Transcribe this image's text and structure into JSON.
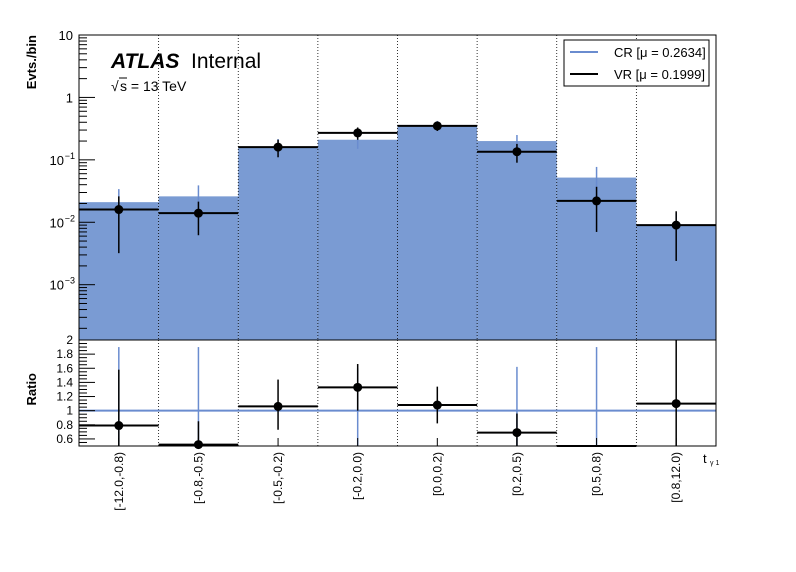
{
  "chart_data": {
    "type": "histogram",
    "categories": [
      "[-12.0,-0.8)",
      "[-0.8,-0.5)",
      "[-0.5,-0.2)",
      "[-0.2,0.0)",
      "[0.0,0.2)",
      "[0.2,0.5)",
      "[0.5,0.8)",
      "[0.8,12.0)"
    ],
    "xlabel": "t",
    "xlabel_sub": "γ 1",
    "main": {
      "ylabel": "Evts./bin",
      "yscale": "log",
      "ylim": [
        0.00013,
        10
      ],
      "yticks": [
        {
          "value": 10,
          "label": "10"
        },
        {
          "value": 1,
          "label": "1"
        },
        {
          "value": 0.1,
          "label": "10",
          "exp": "−1"
        },
        {
          "value": 0.01,
          "label": "10",
          "exp": "−2"
        },
        {
          "value": 0.001,
          "label": "10",
          "exp": "−3"
        }
      ],
      "series": [
        {
          "name": "CR [μ = 0.2634]",
          "style": "filled-histogram",
          "color": "#7a9bd3",
          "line_color": "#6a8ccf",
          "values": [
            0.021,
            0.026,
            0.16,
            0.21,
            0.36,
            0.2,
            0.052,
            0.009
          ],
          "err_low": [
            0.0095,
            0.0115,
            0.05,
            0.06,
            0.06,
            0.07,
            0.032,
            0.0066
          ],
          "err_high": [
            0.013,
            0.013,
            0.055,
            0.07,
            0.06,
            0.05,
            0.025,
            0.005
          ]
        },
        {
          "name": "VR [μ = 0.1999]",
          "style": "points-with-errors",
          "color": "#000000",
          "values": [
            0.016,
            0.014,
            0.16,
            0.27,
            0.35,
            0.135,
            0.022,
            0.009
          ],
          "err_low": [
            0.0128,
            0.0078,
            0.05,
            0.06,
            0.06,
            0.045,
            0.015,
            0.0066
          ],
          "err_high": [
            0.01,
            0.0074,
            0.05,
            0.06,
            0.06,
            0.045,
            0.015,
            0.006
          ]
        }
      ]
    },
    "ratio": {
      "ylabel": "Ratio",
      "ylim": [
        0.5,
        2.0
      ],
      "yticks": [
        0.6,
        0.8,
        1,
        1.2,
        1.4,
        1.6,
        1.8,
        2
      ],
      "reference_line": 1,
      "values": [
        0.79,
        0.52,
        1.06,
        1.33,
        1.08,
        0.69,
        0.48,
        1.1
      ],
      "err_black_low": [
        0.79,
        0.29,
        0.33,
        0.33,
        0.26,
        0.27,
        0.0,
        0.6
      ],
      "err_black_high": [
        0.79,
        0.33,
        0.38,
        0.33,
        0.26,
        0.27,
        0.0,
        0.9
      ],
      "err_blue": [
        0.9,
        0.98,
        0.0,
        0.6,
        0.0,
        0.62,
        1.1,
        0.0
      ]
    },
    "annotations": {
      "experiment": "ATLAS",
      "status": "Internal",
      "energy": "s = 13 TeV",
      "energy_prefix": "√"
    },
    "legend_position": "top-right"
  }
}
